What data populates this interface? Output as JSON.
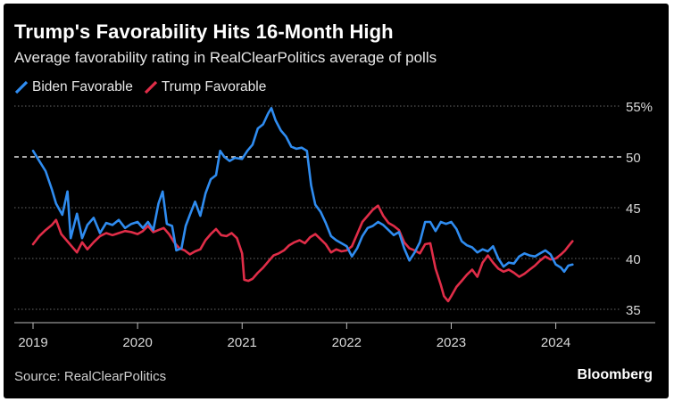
{
  "chart_data": {
    "type": "line",
    "title": "Trump's Favorability Hits 16-Month High",
    "subtitle": "Average favorability rating in RealClearPolitics average of polls",
    "xlabel": "",
    "ylabel": "",
    "xlim": [
      2019.0,
      2024.55
    ],
    "ylim": [
      34,
      56
    ],
    "x_ticks": [
      {
        "value": 2019,
        "label": "2019"
      },
      {
        "value": 2020,
        "label": "2020"
      },
      {
        "value": 2021,
        "label": "2021"
      },
      {
        "value": 2022,
        "label": "2022"
      },
      {
        "value": 2023,
        "label": "2023"
      },
      {
        "value": 2024,
        "label": "2024"
      }
    ],
    "y_ticks": [
      {
        "value": 35,
        "label": "35"
      },
      {
        "value": 40,
        "label": "40"
      },
      {
        "value": 45,
        "label": "45"
      },
      {
        "value": 50,
        "label": "50"
      },
      {
        "value": 55,
        "label": "55%"
      }
    ],
    "reference_line": {
      "y": 50,
      "style": "dashed"
    },
    "legend": {
      "placement": "top-left"
    },
    "series": [
      {
        "name": "Biden Favorable",
        "color": "#2f8cf0",
        "points": [
          [
            2019.0,
            50.6
          ],
          [
            2019.06,
            49.6
          ],
          [
            2019.12,
            48.6
          ],
          [
            2019.18,
            46.8
          ],
          [
            2019.22,
            45.4
          ],
          [
            2019.28,
            44.3
          ],
          [
            2019.33,
            46.6
          ],
          [
            2019.36,
            42.0
          ],
          [
            2019.42,
            44.4
          ],
          [
            2019.47,
            42.0
          ],
          [
            2019.52,
            43.3
          ],
          [
            2019.58,
            44.0
          ],
          [
            2019.64,
            42.5
          ],
          [
            2019.7,
            43.5
          ],
          [
            2019.76,
            43.3
          ],
          [
            2019.82,
            43.8
          ],
          [
            2019.88,
            43.0
          ],
          [
            2019.94,
            43.4
          ],
          [
            2020.0,
            43.6
          ],
          [
            2020.05,
            43.0
          ],
          [
            2020.1,
            43.6
          ],
          [
            2020.15,
            42.8
          ],
          [
            2020.2,
            45.4
          ],
          [
            2020.24,
            46.6
          ],
          [
            2020.28,
            43.4
          ],
          [
            2020.33,
            43.2
          ],
          [
            2020.37,
            40.8
          ],
          [
            2020.42,
            41.0
          ],
          [
            2020.46,
            43.2
          ],
          [
            2020.5,
            44.3
          ],
          [
            2020.55,
            45.6
          ],
          [
            2020.6,
            44.2
          ],
          [
            2020.65,
            46.4
          ],
          [
            2020.7,
            47.8
          ],
          [
            2020.75,
            48.2
          ],
          [
            2020.79,
            50.6
          ],
          [
            2020.83,
            50.0
          ],
          [
            2020.88,
            49.6
          ],
          [
            2020.93,
            49.9
          ],
          [
            2021.0,
            49.8
          ],
          [
            2021.05,
            50.6
          ],
          [
            2021.1,
            51.2
          ],
          [
            2021.15,
            52.8
          ],
          [
            2021.2,
            53.2
          ],
          [
            2021.25,
            54.3
          ],
          [
            2021.28,
            54.8
          ],
          [
            2021.32,
            53.6
          ],
          [
            2021.37,
            52.6
          ],
          [
            2021.42,
            52.0
          ],
          [
            2021.47,
            51.0
          ],
          [
            2021.52,
            50.8
          ],
          [
            2021.57,
            50.9
          ],
          [
            2021.62,
            50.6
          ],
          [
            2021.66,
            47.2
          ],
          [
            2021.7,
            45.3
          ],
          [
            2021.75,
            44.6
          ],
          [
            2021.8,
            43.5
          ],
          [
            2021.85,
            42.2
          ],
          [
            2021.9,
            41.8
          ],
          [
            2021.95,
            41.5
          ],
          [
            2022.0,
            41.2
          ],
          [
            2022.05,
            40.2
          ],
          [
            2022.1,
            41.0
          ],
          [
            2022.15,
            42.2
          ],
          [
            2022.2,
            43.0
          ],
          [
            2022.25,
            43.2
          ],
          [
            2022.3,
            43.6
          ],
          [
            2022.35,
            43.3
          ],
          [
            2022.4,
            42.8
          ],
          [
            2022.45,
            42.3
          ],
          [
            2022.5,
            42.6
          ],
          [
            2022.55,
            41.0
          ],
          [
            2022.6,
            39.8
          ],
          [
            2022.65,
            40.6
          ],
          [
            2022.7,
            41.6
          ],
          [
            2022.75,
            43.6
          ],
          [
            2022.8,
            43.6
          ],
          [
            2022.85,
            42.7
          ],
          [
            2022.9,
            43.6
          ],
          [
            2022.95,
            43.4
          ],
          [
            2023.0,
            43.6
          ],
          [
            2023.05,
            42.9
          ],
          [
            2023.1,
            41.7
          ],
          [
            2023.15,
            41.3
          ],
          [
            2023.2,
            41.1
          ],
          [
            2023.25,
            40.6
          ],
          [
            2023.3,
            40.9
          ],
          [
            2023.35,
            40.7
          ],
          [
            2023.4,
            41.2
          ],
          [
            2023.45,
            40.0
          ],
          [
            2023.5,
            39.2
          ],
          [
            2023.55,
            39.6
          ],
          [
            2023.6,
            39.5
          ],
          [
            2023.65,
            40.2
          ],
          [
            2023.7,
            40.5
          ],
          [
            2023.75,
            40.3
          ],
          [
            2023.8,
            40.2
          ],
          [
            2023.85,
            40.5
          ],
          [
            2023.9,
            40.8
          ],
          [
            2023.95,
            40.4
          ],
          [
            2024.0,
            39.4
          ],
          [
            2024.05,
            39.1
          ],
          [
            2024.08,
            38.7
          ],
          [
            2024.12,
            39.3
          ],
          [
            2024.16,
            39.4
          ]
        ]
      },
      {
        "name": "Trump Favorable",
        "color": "#e02d48",
        "points": [
          [
            2019.0,
            41.4
          ],
          [
            2019.06,
            42.2
          ],
          [
            2019.12,
            42.8
          ],
          [
            2019.18,
            43.3
          ],
          [
            2019.22,
            43.8
          ],
          [
            2019.27,
            42.4
          ],
          [
            2019.32,
            41.8
          ],
          [
            2019.37,
            41.2
          ],
          [
            2019.42,
            40.6
          ],
          [
            2019.47,
            41.6
          ],
          [
            2019.52,
            40.9
          ],
          [
            2019.58,
            41.6
          ],
          [
            2019.64,
            42.2
          ],
          [
            2019.7,
            42.5
          ],
          [
            2019.76,
            42.3
          ],
          [
            2019.82,
            42.5
          ],
          [
            2019.88,
            42.7
          ],
          [
            2019.94,
            42.6
          ],
          [
            2020.0,
            42.4
          ],
          [
            2020.05,
            42.7
          ],
          [
            2020.1,
            43.2
          ],
          [
            2020.15,
            42.6
          ],
          [
            2020.2,
            42.8
          ],
          [
            2020.25,
            43.0
          ],
          [
            2020.3,
            42.4
          ],
          [
            2020.35,
            41.6
          ],
          [
            2020.4,
            41.0
          ],
          [
            2020.45,
            40.8
          ],
          [
            2020.5,
            40.4
          ],
          [
            2020.55,
            40.7
          ],
          [
            2020.6,
            40.9
          ],
          [
            2020.65,
            41.8
          ],
          [
            2020.7,
            42.4
          ],
          [
            2020.75,
            42.9
          ],
          [
            2020.8,
            42.3
          ],
          [
            2020.85,
            42.2
          ],
          [
            2020.9,
            42.5
          ],
          [
            2020.95,
            42.0
          ],
          [
            2021.0,
            40.5
          ],
          [
            2021.02,
            37.9
          ],
          [
            2021.06,
            37.8
          ],
          [
            2021.1,
            38.0
          ],
          [
            2021.15,
            38.6
          ],
          [
            2021.2,
            39.1
          ],
          [
            2021.25,
            39.7
          ],
          [
            2021.3,
            40.3
          ],
          [
            2021.35,
            40.5
          ],
          [
            2021.4,
            40.8
          ],
          [
            2021.45,
            41.3
          ],
          [
            2021.5,
            41.6
          ],
          [
            2021.55,
            41.8
          ],
          [
            2021.6,
            41.5
          ],
          [
            2021.65,
            42.1
          ],
          [
            2021.7,
            42.4
          ],
          [
            2021.75,
            41.9
          ],
          [
            2021.8,
            41.4
          ],
          [
            2021.85,
            40.6
          ],
          [
            2021.9,
            40.9
          ],
          [
            2021.95,
            40.7
          ],
          [
            2022.0,
            40.8
          ],
          [
            2022.05,
            41.2
          ],
          [
            2022.1,
            42.4
          ],
          [
            2022.15,
            43.6
          ],
          [
            2022.2,
            44.2
          ],
          [
            2022.25,
            44.8
          ],
          [
            2022.3,
            45.2
          ],
          [
            2022.35,
            44.2
          ],
          [
            2022.4,
            43.5
          ],
          [
            2022.45,
            43.2
          ],
          [
            2022.5,
            42.8
          ],
          [
            2022.55,
            41.6
          ],
          [
            2022.6,
            41.0
          ],
          [
            2022.65,
            40.8
          ],
          [
            2022.7,
            40.5
          ],
          [
            2022.75,
            41.4
          ],
          [
            2022.8,
            41.5
          ],
          [
            2022.85,
            39.0
          ],
          [
            2022.9,
            37.4
          ],
          [
            2022.93,
            36.3
          ],
          [
            2022.97,
            35.8
          ],
          [
            2023.0,
            36.3
          ],
          [
            2023.05,
            37.2
          ],
          [
            2023.1,
            37.8
          ],
          [
            2023.15,
            38.4
          ],
          [
            2023.2,
            38.9
          ],
          [
            2023.25,
            38.2
          ],
          [
            2023.3,
            39.6
          ],
          [
            2023.35,
            40.3
          ],
          [
            2023.4,
            39.6
          ],
          [
            2023.45,
            39.0
          ],
          [
            2023.5,
            38.7
          ],
          [
            2023.55,
            38.9
          ],
          [
            2023.6,
            38.6
          ],
          [
            2023.65,
            38.2
          ],
          [
            2023.7,
            38.5
          ],
          [
            2023.75,
            38.9
          ],
          [
            2023.8,
            39.3
          ],
          [
            2023.85,
            39.8
          ],
          [
            2023.9,
            40.2
          ],
          [
            2023.95,
            39.9
          ],
          [
            2024.0,
            40.0
          ],
          [
            2024.05,
            40.4
          ],
          [
            2024.09,
            40.8
          ],
          [
            2024.12,
            41.2
          ],
          [
            2024.16,
            41.7
          ]
        ]
      }
    ]
  },
  "footer": {
    "source": "Source: RealClearPolitics",
    "brand": "Bloomberg"
  }
}
